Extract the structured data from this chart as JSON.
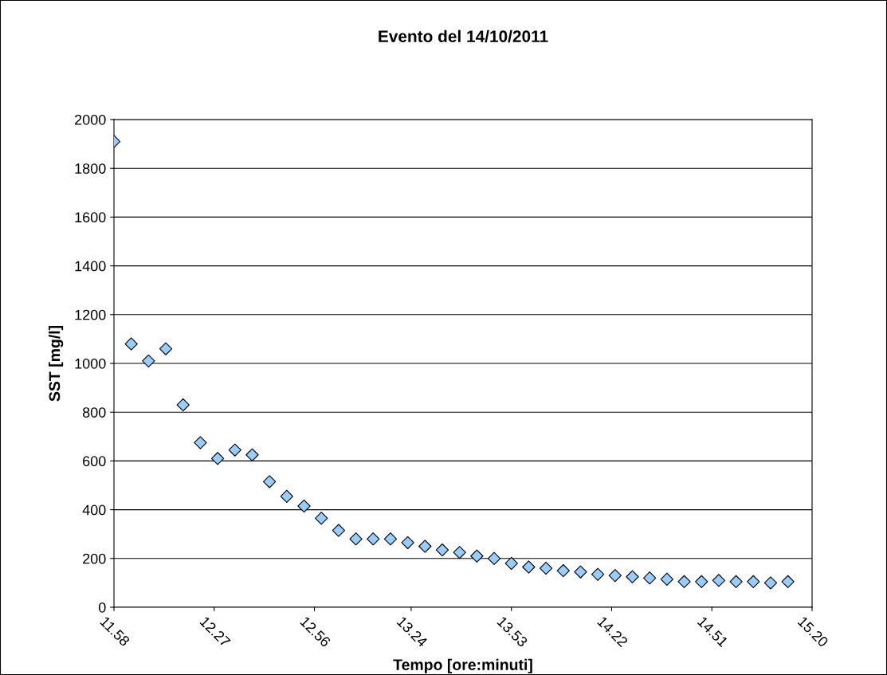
{
  "chart_data": {
    "type": "scatter",
    "title": "Evento del 14/10/2011",
    "xlabel": "Tempo [ore:minuti]",
    "ylabel": "SST [mg/l]",
    "x": [
      "2011-10-14T11:58",
      "2011-10-14T12:03",
      "2011-10-14T12:08",
      "2011-10-14T12:13",
      "2011-10-14T12:18",
      "2011-10-14T12:23",
      "2011-10-14T12:28",
      "2011-10-14T12:33",
      "2011-10-14T12:38",
      "2011-10-14T12:43",
      "2011-10-14T12:48",
      "2011-10-14T12:53",
      "2011-10-14T12:58",
      "2011-10-14T13:03",
      "2011-10-14T13:08",
      "2011-10-14T13:13",
      "2011-10-14T13:18",
      "2011-10-14T13:23",
      "2011-10-14T13:28",
      "2011-10-14T13:33",
      "2011-10-14T13:38",
      "2011-10-14T13:43",
      "2011-10-14T13:48",
      "2011-10-14T13:53",
      "2011-10-14T13:58",
      "2011-10-14T14:03",
      "2011-10-14T14:08",
      "2011-10-14T14:13",
      "2011-10-14T14:18",
      "2011-10-14T14:23",
      "2011-10-14T14:28",
      "2011-10-14T14:33",
      "2011-10-14T14:38",
      "2011-10-14T14:43",
      "2011-10-14T14:48",
      "2011-10-14T14:53",
      "2011-10-14T14:58",
      "2011-10-14T15:03",
      "2011-10-14T15:08",
      "2011-10-14T15:13"
    ],
    "series": [
      {
        "color": "#99ccff",
        "values": [
          1910,
          1080,
          1010,
          1060,
          830,
          675,
          610,
          645,
          625,
          515,
          455,
          415,
          365,
          315,
          280,
          280,
          280,
          265,
          250,
          235,
          225,
          210,
          200,
          180,
          165,
          160,
          150,
          145,
          135,
          130,
          125,
          120,
          115,
          105,
          105,
          110,
          105,
          105,
          100,
          105
        ]
      }
    ],
    "xlim": [
      "2011-10-14T11:58",
      "2011-10-14T15:20"
    ],
    "xticks": [
      {
        "value": "2011-10-14T11:58",
        "label": "11.58"
      },
      {
        "value": "2011-10-14T12:27",
        "label": "12.27"
      },
      {
        "value": "2011-10-14T12:56",
        "label": "12.56"
      },
      {
        "value": "2011-10-14T13:24",
        "label": "13.24"
      },
      {
        "value": "2011-10-14T13:53",
        "label": "13.53"
      },
      {
        "value": "2011-10-14T14:22",
        "label": "14.22"
      },
      {
        "value": "2011-10-14T14:51",
        "label": "14.51"
      },
      {
        "value": "2011-10-14T15:20",
        "label": "15.20"
      }
    ],
    "ylim": [
      0,
      2000
    ],
    "yticks": [
      0,
      200,
      400,
      600,
      800,
      1000,
      1200,
      1400,
      1600,
      1800,
      2000
    ],
    "grid": "y",
    "marker": "diamond"
  }
}
